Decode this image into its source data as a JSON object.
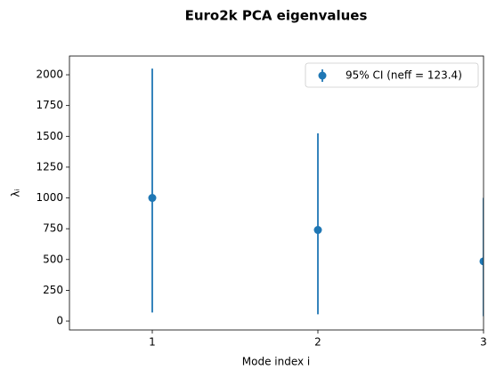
{
  "chart_data": {
    "type": "errorbar",
    "title": "Euro2k PCA eigenvalues",
    "x_label": "Mode index i",
    "y_label": "λᵢ",
    "x": [
      1,
      2,
      3
    ],
    "series": [
      {
        "name": "95% CI (neff = 123.4)",
        "color": "#1f77b4",
        "values": [
          1000,
          740,
          485
        ],
        "lower_errors": [
          930,
          685,
          445
        ],
        "upper_errors": [
          1050,
          785,
          515
        ]
      }
    ],
    "xlim": [
      0.5,
      3
    ],
    "xticks": [
      1,
      2,
      3
    ],
    "ylim": [
      -72,
      2152
    ],
    "yticks": [
      0,
      250,
      500,
      750,
      1000,
      1250,
      1500,
      1750,
      2000
    ],
    "legend": "upper right"
  }
}
